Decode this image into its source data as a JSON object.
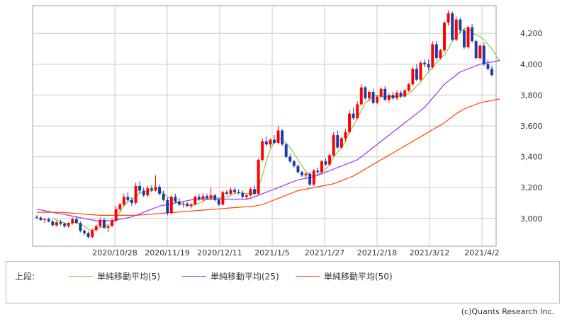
{
  "chart_data": {
    "type": "candlestick",
    "x_tick_labels": [
      "2020/10/28",
      "2020/11/19",
      "2020/12/11",
      "2021/1/5",
      "2021/1/27",
      "2021/2/18",
      "2021/3/12",
      "2021/4/2"
    ],
    "y_ticks": [
      3000,
      3200,
      3400,
      3600,
      3800,
      4000,
      4200
    ],
    "y_tick_labels": [
      "3,000",
      "3,200",
      "3,400",
      "3,600",
      "3,800",
      "4,000",
      "4,200"
    ],
    "ylim": [
      2820,
      4380
    ],
    "grid": true,
    "candles": [
      [
        3010,
        3020,
        2995,
        3005
      ],
      [
        3005,
        3015,
        2985,
        2990
      ],
      [
        2990,
        3000,
        2970,
        2995
      ],
      [
        2995,
        3005,
        2975,
        2980
      ],
      [
        2980,
        2990,
        2950,
        2955
      ],
      [
        2955,
        2985,
        2945,
        2975
      ],
      [
        2975,
        2990,
        2955,
        2965
      ],
      [
        2965,
        2975,
        2940,
        2950
      ],
      [
        2950,
        2975,
        2940,
        2970
      ],
      [
        2970,
        3005,
        2960,
        2995
      ],
      [
        2995,
        3010,
        2965,
        2970
      ],
      [
        2970,
        2980,
        2910,
        2920
      ],
      [
        2920,
        2930,
        2890,
        2905
      ],
      [
        2905,
        2915,
        2870,
        2880
      ],
      [
        2880,
        2935,
        2870,
        2925
      ],
      [
        2925,
        2960,
        2915,
        2950
      ],
      [
        2950,
        3005,
        2940,
        2990
      ],
      [
        2990,
        3005,
        2930,
        2940
      ],
      [
        2940,
        2955,
        2910,
        2950
      ],
      [
        2950,
        3000,
        2945,
        2985
      ],
      [
        2985,
        3080,
        2975,
        3060
      ],
      [
        3060,
        3100,
        3045,
        3090
      ],
      [
        3090,
        3160,
        3080,
        3140
      ],
      [
        3140,
        3170,
        3110,
        3120
      ],
      [
        3120,
        3140,
        3080,
        3100
      ],
      [
        3100,
        3230,
        3090,
        3210
      ],
      [
        3210,
        3240,
        3160,
        3180
      ],
      [
        3180,
        3200,
        3140,
        3150
      ],
      [
        3150,
        3210,
        3140,
        3195
      ],
      [
        3195,
        3215,
        3170,
        3185
      ],
      [
        3185,
        3280,
        3175,
        3205
      ],
      [
        3205,
        3220,
        3150,
        3160
      ],
      [
        3160,
        3180,
        3110,
        3120
      ],
      [
        3120,
        3135,
        3020,
        3035
      ],
      [
        3035,
        3150,
        3025,
        3140
      ],
      [
        3140,
        3160,
        3100,
        3110
      ],
      [
        3110,
        3130,
        3080,
        3090
      ],
      [
        3090,
        3110,
        3070,
        3095
      ],
      [
        3095,
        3105,
        3075,
        3080
      ],
      [
        3080,
        3100,
        3065,
        3090
      ],
      [
        3090,
        3150,
        3085,
        3140
      ],
      [
        3140,
        3160,
        3115,
        3125
      ],
      [
        3125,
        3165,
        3110,
        3145
      ],
      [
        3145,
        3160,
        3120,
        3130
      ],
      [
        3130,
        3200,
        3120,
        3150
      ],
      [
        3150,
        3160,
        3110,
        3120
      ],
      [
        3120,
        3135,
        3080,
        3090
      ],
      [
        3090,
        3180,
        3085,
        3170
      ],
      [
        3170,
        3185,
        3150,
        3160
      ],
      [
        3160,
        3200,
        3150,
        3185
      ],
      [
        3185,
        3200,
        3160,
        3170
      ],
      [
        3170,
        3190,
        3155,
        3165
      ],
      [
        3165,
        3180,
        3130,
        3140
      ],
      [
        3140,
        3160,
        3120,
        3150
      ],
      [
        3150,
        3200,
        3140,
        3190
      ],
      [
        3190,
        3215,
        3150,
        3160
      ],
      [
        3160,
        3390,
        3150,
        3380
      ],
      [
        3380,
        3520,
        3370,
        3500
      ],
      [
        3500,
        3530,
        3470,
        3480
      ],
      [
        3480,
        3520,
        3460,
        3510
      ],
      [
        3510,
        3540,
        3480,
        3490
      ],
      [
        3490,
        3600,
        3480,
        3570
      ],
      [
        3570,
        3580,
        3470,
        3480
      ],
      [
        3480,
        3490,
        3390,
        3400
      ],
      [
        3400,
        3420,
        3360,
        3370
      ],
      [
        3370,
        3380,
        3330,
        3340
      ],
      [
        3340,
        3350,
        3290,
        3300
      ],
      [
        3300,
        3310,
        3270,
        3280
      ],
      [
        3280,
        3300,
        3260,
        3290
      ],
      [
        3290,
        3300,
        3210,
        3220
      ],
      [
        3220,
        3320,
        3210,
        3310
      ],
      [
        3310,
        3330,
        3280,
        3300
      ],
      [
        3300,
        3380,
        3290,
        3370
      ],
      [
        3370,
        3390,
        3340,
        3350
      ],
      [
        3350,
        3420,
        3340,
        3410
      ],
      [
        3410,
        3560,
        3400,
        3540
      ],
      [
        3540,
        3570,
        3450,
        3460
      ],
      [
        3460,
        3530,
        3450,
        3520
      ],
      [
        3520,
        3580,
        3500,
        3560
      ],
      [
        3560,
        3700,
        3550,
        3680
      ],
      [
        3680,
        3720,
        3640,
        3650
      ],
      [
        3650,
        3760,
        3640,
        3740
      ],
      [
        3740,
        3870,
        3730,
        3850
      ],
      [
        3850,
        3860,
        3770,
        3780
      ],
      [
        3780,
        3830,
        3760,
        3820
      ],
      [
        3820,
        3840,
        3740,
        3750
      ],
      [
        3750,
        3800,
        3740,
        3790
      ],
      [
        3790,
        3850,
        3780,
        3840
      ],
      [
        3840,
        3860,
        3760,
        3770
      ],
      [
        3770,
        3810,
        3750,
        3800
      ],
      [
        3800,
        3820,
        3770,
        3780
      ],
      [
        3780,
        3830,
        3770,
        3815
      ],
      [
        3815,
        3830,
        3780,
        3790
      ],
      [
        3790,
        3840,
        3785,
        3830
      ],
      [
        3830,
        3880,
        3820,
        3870
      ],
      [
        3870,
        3980,
        3860,
        3970
      ],
      [
        3970,
        4000,
        3890,
        3900
      ],
      [
        3900,
        4020,
        3890,
        4010
      ],
      [
        4010,
        4030,
        3980,
        4000
      ],
      [
        4000,
        4030,
        3960,
        3980
      ],
      [
        3980,
        4150,
        3970,
        4130
      ],
      [
        4130,
        4150,
        4030,
        4040
      ],
      [
        4040,
        4100,
        4030,
        4090
      ],
      [
        4090,
        4280,
        4080,
        4270
      ],
      [
        4270,
        4350,
        4250,
        4330
      ],
      [
        4330,
        4340,
        4150,
        4160
      ],
      [
        4160,
        4310,
        4150,
        4290
      ],
      [
        4290,
        4300,
        4200,
        4220
      ],
      [
        4220,
        4230,
        4100,
        4110
      ],
      [
        4110,
        4250,
        4100,
        4240
      ],
      [
        4240,
        4260,
        4140,
        4150
      ],
      [
        4150,
        4160,
        4030,
        4040
      ],
      [
        4040,
        4130,
        4030,
        4120
      ],
      [
        4120,
        4140,
        3990,
        4000
      ],
      [
        4000,
        4030,
        3960,
        3970
      ],
      [
        3970,
        3990,
        3920,
        3930
      ]
    ],
    "series": [
      {
        "name": "単純移動平均(5)",
        "color": "#8cc63f",
        "values": [
          null,
          null,
          null,
          null,
          3000,
          2990,
          2980,
          2970,
          2965,
          2970,
          2975,
          2965,
          2950,
          2930,
          2920,
          2930,
          2940,
          2950,
          2960,
          2970,
          3000,
          3040,
          3080,
          3110,
          3120,
          3140,
          3165,
          3170,
          3175,
          3180,
          3185,
          3180,
          3165,
          3140,
          3130,
          3115,
          3100,
          3095,
          3090,
          3085,
          3090,
          3100,
          3110,
          3125,
          3135,
          3135,
          3130,
          3135,
          3140,
          3150,
          3160,
          3170,
          3165,
          3160,
          3165,
          3160,
          3200,
          3280,
          3370,
          3450,
          3495,
          3520,
          3510,
          3490,
          3460,
          3420,
          3380,
          3340,
          3305,
          3280,
          3275,
          3280,
          3300,
          3320,
          3350,
          3400,
          3430,
          3460,
          3500,
          3560,
          3600,
          3650,
          3700,
          3750,
          3770,
          3790,
          3800,
          3790,
          3790,
          3790,
          3790,
          3790,
          3795,
          3800,
          3810,
          3830,
          3860,
          3880,
          3920,
          3950,
          3980,
          4010,
          4040,
          4060,
          4100,
          4150,
          4180,
          4210,
          4230,
          4240,
          4200,
          4190,
          4180,
          4160,
          4130,
          4100,
          4060,
          4020
        ]
      },
      {
        "name": "単純移動平均(25)",
        "color": "#9b30ff",
        "values": [
          3060,
          3055,
          3050,
          3045,
          3040,
          3035,
          3030,
          3025,
          3020,
          3015,
          3010,
          3005,
          3000,
          2995,
          2990,
          2985,
          2985,
          2985,
          2985,
          2985,
          2990,
          2995,
          3000,
          3005,
          3010,
          3020,
          3030,
          3040,
          3050,
          3060,
          3070,
          3080,
          3085,
          3090,
          3095,
          3100,
          3105,
          3110,
          3115,
          3120,
          3125,
          3125,
          3125,
          3125,
          3125,
          3125,
          3125,
          3125,
          3125,
          3125,
          3125,
          3125,
          3125,
          3125,
          3130,
          3140,
          3150,
          3160,
          3170,
          3180,
          3190,
          3200,
          3210,
          3220,
          3230,
          3240,
          3250,
          3255,
          3260,
          3265,
          3270,
          3280,
          3290,
          3300,
          3310,
          3320,
          3330,
          3340,
          3350,
          3360,
          3370,
          3380,
          3400,
          3420,
          3440,
          3460,
          3480,
          3500,
          3520,
          3540,
          3560,
          3580,
          3600,
          3620,
          3640,
          3660,
          3680,
          3700,
          3720,
          3750,
          3780,
          3810,
          3840,
          3870,
          3890,
          3910,
          3930,
          3950,
          3960,
          3970,
          3980,
          3990,
          4000,
          4005,
          4010,
          4015,
          4020,
          4025
        ]
      },
      {
        "name": "単純移動平均(50)",
        "color": "#ff4500",
        "values": [
          3040,
          3040,
          3040,
          3040,
          3040,
          3040,
          3040,
          3038,
          3036,
          3034,
          3032,
          3030,
          3028,
          3026,
          3024,
          3022,
          3020,
          3020,
          3020,
          3020,
          3020,
          3020,
          3020,
          3020,
          3020,
          3020,
          3022,
          3024,
          3026,
          3028,
          3030,
          3032,
          3034,
          3036,
          3038,
          3040,
          3042,
          3044,
          3046,
          3048,
          3050,
          3052,
          3054,
          3056,
          3058,
          3060,
          3062,
          3064,
          3066,
          3068,
          3070,
          3072,
          3074,
          3076,
          3078,
          3080,
          3085,
          3090,
          3100,
          3110,
          3120,
          3130,
          3140,
          3150,
          3160,
          3170,
          3180,
          3185,
          3190,
          3195,
          3200,
          3205,
          3210,
          3215,
          3220,
          3225,
          3235,
          3245,
          3255,
          3265,
          3275,
          3290,
          3305,
          3320,
          3335,
          3350,
          3365,
          3380,
          3395,
          3410,
          3425,
          3440,
          3455,
          3470,
          3485,
          3500,
          3515,
          3530,
          3545,
          3560,
          3575,
          3590,
          3605,
          3620,
          3640,
          3660,
          3680,
          3695,
          3710,
          3720,
          3730,
          3740,
          3750,
          3755,
          3760,
          3765,
          3770,
          3775
        ]
      }
    ],
    "up_color": "#ff0000",
    "down_color": "#1a3aa8"
  },
  "legend": {
    "title": "上段:",
    "items": [
      "単純移動平均(5)",
      "単純移動平均(25)",
      "単純移動平均(50)"
    ]
  },
  "credit": "(c)Quants Research Inc."
}
